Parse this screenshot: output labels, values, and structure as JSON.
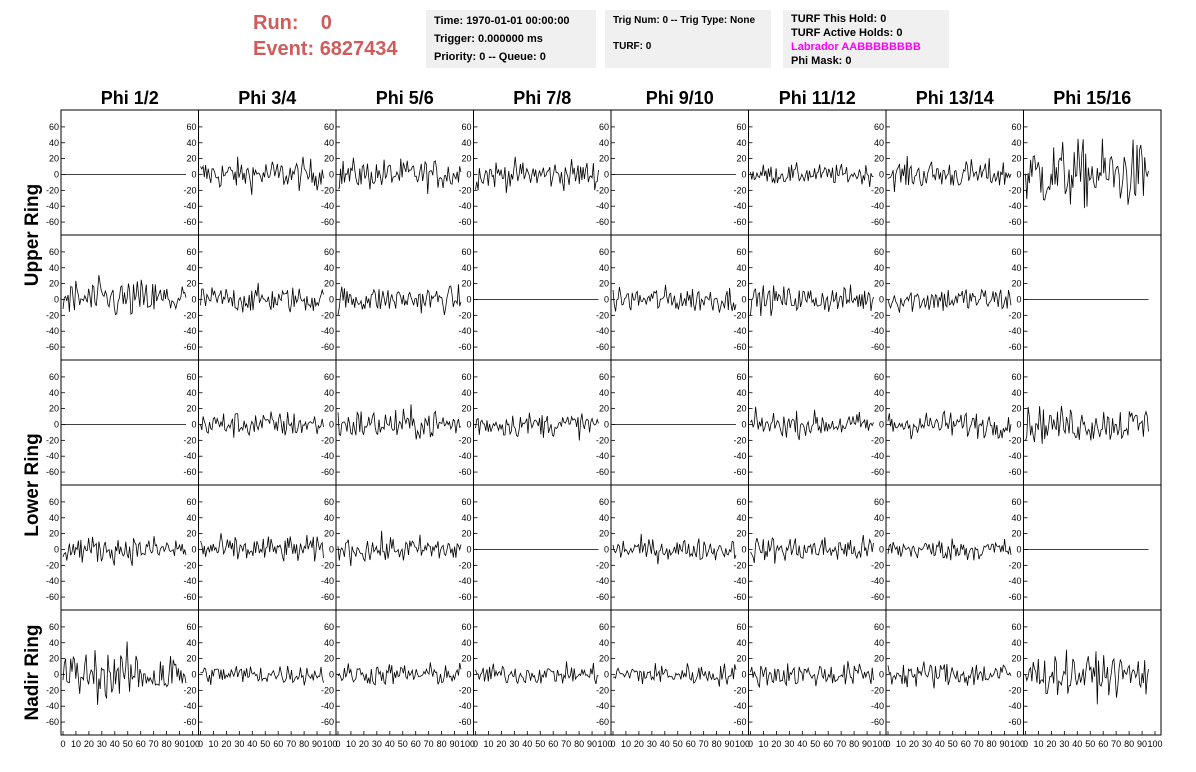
{
  "header": {
    "run_label": "Run:",
    "run_value": "0",
    "event_label": "Event:",
    "event_value": "6827434"
  },
  "info_time": {
    "time": "Time: 1970-01-01 00:00:00",
    "trigger": "Trigger: 0.000000 ms",
    "priority": "Priority: 0 -- Queue: 0"
  },
  "info_trig": {
    "trig": "Trig Num: 0 -- Trig Type: None",
    "turf": "TURF: 0"
  },
  "info_turf": {
    "this_hold": "TURF This Hold: 0",
    "active_holds": "TURF Active Holds: 0",
    "labrador": "Labrador AABBBBBBBB",
    "phi_mask": "Phi Mask: 0"
  },
  "colors": {
    "header_red": "#d05b5b",
    "labrador_magenta": "#ff00ff",
    "trace": "#000000"
  },
  "chart_data": {
    "type": "line",
    "columns": [
      "Phi 1/2",
      "Phi 3/4",
      "Phi 5/6",
      "Phi 7/8",
      "Phi 9/10",
      "Phi 11/12",
      "Phi 13/14",
      "Phi 15/16"
    ],
    "rows": [
      "Upper Ring",
      "Upper Ring",
      "Lower Ring",
      "Lower Ring",
      "Nadir Ring"
    ],
    "ring_labels": [
      "Upper Ring",
      "Lower Ring",
      "Nadir Ring"
    ],
    "ylim": [
      -70,
      75
    ],
    "y_ticks": [
      -60,
      -40,
      -20,
      0,
      20,
      40,
      60
    ],
    "xlim": [
      0,
      100
    ],
    "x_ticks": [
      0,
      10,
      20,
      30,
      40,
      50,
      60,
      70,
      80,
      90,
      100
    ],
    "x_tick_labels": [
      "0",
      "10",
      "20",
      "30",
      "40",
      "50",
      "60",
      "70",
      "80",
      "90",
      "100"
    ],
    "samples_per_trace": 96,
    "panel_amplitudes": [
      [
        0,
        14,
        14,
        13,
        0,
        9,
        13,
        30
      ],
      [
        18,
        12,
        12,
        0,
        12,
        12,
        12,
        0
      ],
      [
        0,
        12,
        14,
        11,
        0,
        11,
        12,
        16
      ],
      [
        12,
        12,
        12,
        0,
        10,
        12,
        10,
        0
      ],
      [
        22,
        9,
        10,
        9,
        10,
        11,
        12,
        18
      ]
    ]
  }
}
